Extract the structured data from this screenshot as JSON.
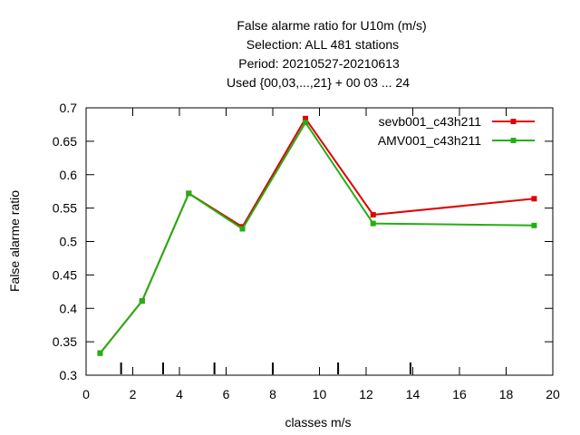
{
  "chart_data": {
    "type": "line",
    "title_lines": [
      "False alarme ratio  for U10m (m/s)",
      "Selection: ALL    481 stations",
      "Period: 20210527-20210613",
      "Used {00,03,...,21} + 00 03 ... 24"
    ],
    "xlabel": "classes m/s",
    "ylabel": "False alarme ratio",
    "xlim": [
      0,
      20
    ],
    "ylim": [
      0.3,
      0.7
    ],
    "xticks": [
      0,
      2,
      4,
      6,
      8,
      10,
      12,
      14,
      16,
      18,
      20
    ],
    "xtick_labels": [
      "0",
      "2",
      "4",
      "6",
      "8",
      "10",
      "12",
      "14",
      "16",
      "18",
      "20"
    ],
    "yticks": [
      0.3,
      0.35,
      0.4,
      0.45,
      0.5,
      0.55,
      0.6,
      0.65,
      0.7
    ],
    "ytick_labels": [
      "0.3",
      "0.35",
      "0.4",
      "0.45",
      "0.5",
      "0.55",
      "0.6",
      "0.65",
      "0.7"
    ],
    "class_bounds": [
      1.5,
      3.3,
      5.5,
      8.0,
      10.8,
      13.9
    ],
    "grid": false,
    "legend_position": "top-right",
    "series": [
      {
        "name": "sevb001_c43h211",
        "color": "#e00000",
        "x": [
          0.6,
          2.4,
          4.4,
          6.7,
          9.4,
          12.3,
          19.2
        ],
        "y": [
          0.333,
          0.411,
          0.572,
          0.522,
          0.684,
          0.54,
          0.564
        ]
      },
      {
        "name": "AMV001_c43h211",
        "color": "#22b011",
        "x": [
          0.6,
          2.4,
          4.4,
          6.7,
          9.4,
          12.3,
          19.2
        ],
        "y": [
          0.333,
          0.411,
          0.572,
          0.519,
          0.678,
          0.527,
          0.524
        ]
      }
    ]
  }
}
